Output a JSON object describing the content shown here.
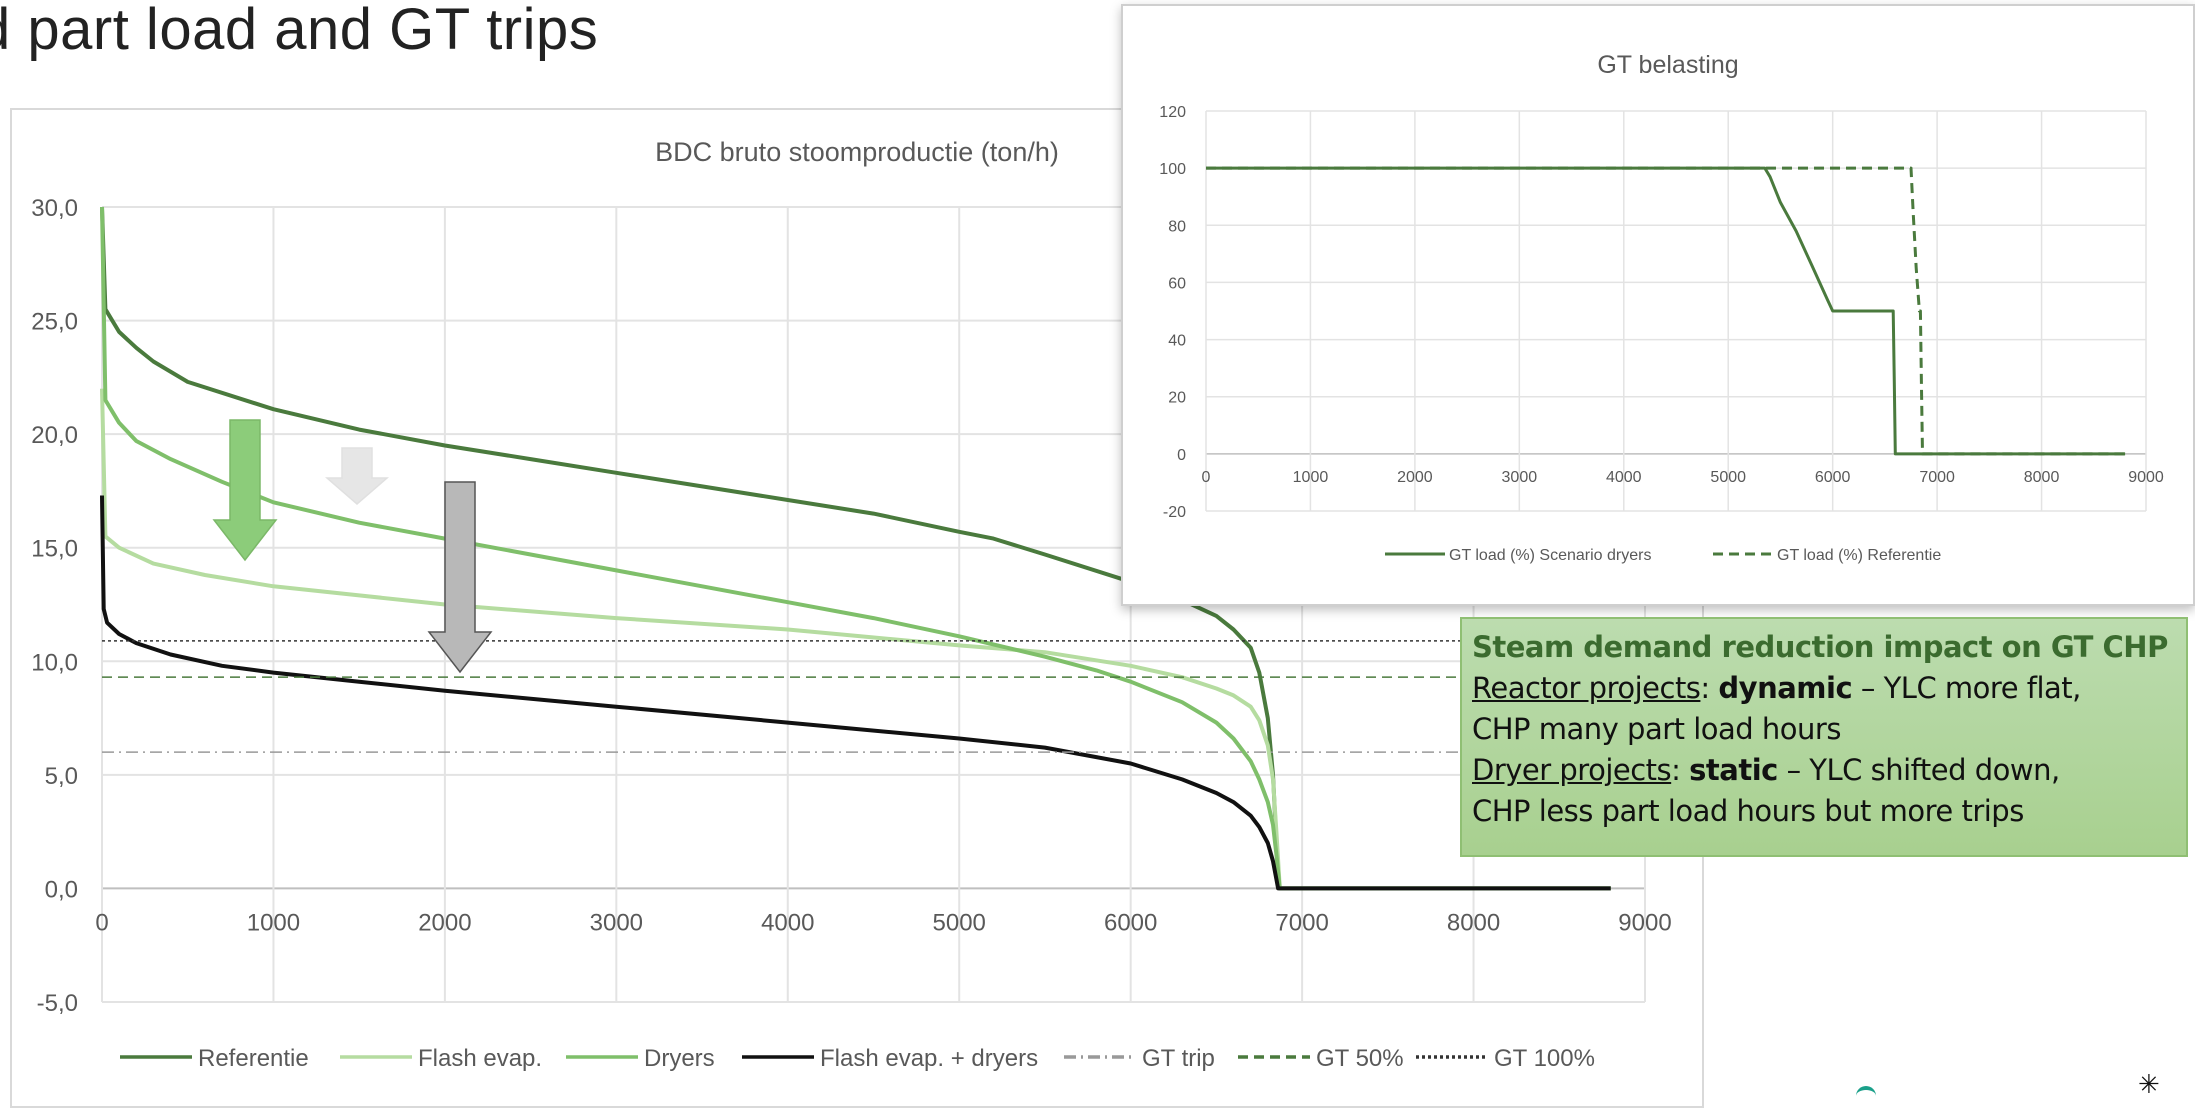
{
  "slide": {
    "title": "d part load and GT trips"
  },
  "callout": {
    "heading": "Steam demand reduction impact on GT CHP",
    "line1_u": "Reactor projects",
    "line1_colon": ": ",
    "line1_b": "dynamic",
    "line1_rest": " – YLC more flat,",
    "line2": "CHP many part load hours",
    "line3_u": "Dryer projects",
    "line3_colon": ": ",
    "line3_b": "static",
    "line3_rest": " – YLC shifted down,",
    "line4": "CHP less part load hours but more trips"
  },
  "chart_data": [
    {
      "type": "line",
      "title": "BDC bruto stoomproductie (ton/h)",
      "xlabel": "",
      "ylabel": "",
      "xlim": [
        0,
        9000
      ],
      "ylim": [
        -5,
        30
      ],
      "xticks": [
        "0",
        "1000",
        "2000",
        "3000",
        "4000",
        "5000",
        "6000",
        "7000",
        "8000",
        "9000"
      ],
      "yticks": [
        "-5,0",
        "0,0",
        "5,0",
        "10,0",
        "15,0",
        "20,0",
        "25,0",
        "30,0"
      ],
      "grid": true,
      "legend_position": "bottom",
      "series": [
        {
          "name": "Referentie",
          "color": "#4a7a3d",
          "style": "solid",
          "x": [
            0,
            20,
            100,
            200,
            300,
            500,
            1000,
            1500,
            2000,
            2500,
            3000,
            3500,
            4000,
            4500,
            5000,
            5200,
            5500,
            6000,
            6300,
            6500,
            6600,
            6700,
            6750,
            6800,
            6830,
            6850,
            6860,
            6870,
            8800
          ],
          "y": [
            30,
            25.5,
            24.5,
            23.8,
            23.2,
            22.3,
            21.1,
            20.2,
            19.5,
            18.9,
            18.3,
            17.7,
            17.1,
            16.5,
            15.7,
            15.4,
            14.7,
            13.5,
            12.7,
            12.0,
            11.4,
            10.6,
            9.5,
            7.5,
            5.0,
            2.0,
            0.5,
            0,
            0
          ]
        },
        {
          "name": "Flash evap.",
          "color": "#b5dca0",
          "style": "solid",
          "x": [
            0,
            20,
            100,
            300,
            600,
            1000,
            1500,
            2000,
            3000,
            4000,
            5000,
            5500,
            6000,
            6300,
            6500,
            6600,
            6700,
            6750,
            6800,
            6830,
            6850,
            6870,
            8800
          ],
          "y": [
            22,
            15.5,
            15.0,
            14.3,
            13.8,
            13.3,
            12.9,
            12.5,
            11.9,
            11.4,
            10.7,
            10.4,
            9.8,
            9.3,
            8.8,
            8.5,
            8.0,
            7.4,
            6.3,
            4.8,
            2.5,
            0,
            0
          ]
        },
        {
          "name": "Dryers",
          "color": "#7fbf6a",
          "style": "solid",
          "x": [
            0,
            20,
            100,
            200,
            400,
            700,
            1000,
            1500,
            2000,
            2500,
            3000,
            3500,
            4000,
            4500,
            5000,
            5500,
            5800,
            6000,
            6300,
            6500,
            6600,
            6700,
            6750,
            6800,
            6830,
            6850,
            6870,
            8800
          ],
          "y": [
            30,
            21.5,
            20.5,
            19.7,
            18.9,
            17.9,
            17.0,
            16.1,
            15.4,
            14.7,
            14.0,
            13.3,
            12.6,
            11.9,
            11.1,
            10.2,
            9.6,
            9.1,
            8.2,
            7.3,
            6.6,
            5.6,
            4.8,
            3.8,
            2.8,
            1.5,
            0,
            0
          ]
        },
        {
          "name": "Flash evap. + dryers",
          "color": "#111111",
          "style": "solid",
          "x": [
            0,
            10,
            30,
            100,
            200,
            400,
            700,
            1000,
            1500,
            2000,
            3000,
            4000,
            5000,
            5500,
            6000,
            6300,
            6500,
            6600,
            6700,
            6750,
            6800,
            6830,
            6850,
            6860,
            8800
          ],
          "y": [
            17.3,
            12.3,
            11.7,
            11.2,
            10.8,
            10.3,
            9.8,
            9.5,
            9.1,
            8.7,
            8.0,
            7.3,
            6.6,
            6.2,
            5.5,
            4.8,
            4.2,
            3.8,
            3.2,
            2.7,
            2.0,
            1.2,
            0.4,
            0,
            0
          ]
        },
        {
          "name": "GT trip",
          "color": "#999999",
          "style": "dashdot",
          "y": [
            6.0
          ]
        },
        {
          "name": "GT 50%",
          "color": "#4a7a3d",
          "style": "dashed",
          "y": [
            9.3
          ]
        },
        {
          "name": "GT 100%",
          "color": "#333333",
          "style": "dotted",
          "y": [
            10.9
          ]
        }
      ]
    },
    {
      "type": "line",
      "title": "GT belasting",
      "xlabel": "",
      "ylabel": "",
      "xlim": [
        0,
        9000
      ],
      "ylim": [
        -20,
        120
      ],
      "xticks": [
        "0",
        "1000",
        "2000",
        "3000",
        "4000",
        "5000",
        "6000",
        "7000",
        "8000",
        "9000"
      ],
      "yticks": [
        "-20",
        "0",
        "20",
        "40",
        "60",
        "80",
        "100",
        "120"
      ],
      "grid": true,
      "legend_position": "bottom",
      "series": [
        {
          "name": "GT load (%) Scenario dryers",
          "color": "#4a7a3d",
          "style": "solid",
          "x": [
            0,
            5350,
            5400,
            5500,
            5650,
            5800,
            5950,
            6000,
            6150,
            6300,
            6450,
            6580,
            6590,
            6600,
            8800
          ],
          "y": [
            100,
            100,
            97,
            88,
            78,
            66,
            54,
            50,
            50,
            50,
            50,
            50,
            25,
            0,
            0
          ]
        },
        {
          "name": "GT load (%) Referentie",
          "color": "#4a7a3d",
          "style": "dashed",
          "x": [
            0,
            6750,
            6770,
            6800,
            6830,
            6840,
            6850,
            6860,
            8800
          ],
          "y": [
            100,
            100,
            85,
            65,
            50,
            50,
            25,
            0,
            0
          ]
        }
      ]
    }
  ],
  "legend_main": [
    "Referentie",
    "Flash evap.",
    "Dryers",
    "Flash evap. + dryers",
    "GT trip",
    "GT 50%",
    "GT 100%"
  ],
  "legend_inset": [
    "GT load (%) Scenario dryers",
    "GT load (%) Referentie"
  ],
  "arrow_colors": {
    "green": "#8ccc7a",
    "light": "#e6e6e6",
    "grey": "#b8b8b8"
  }
}
